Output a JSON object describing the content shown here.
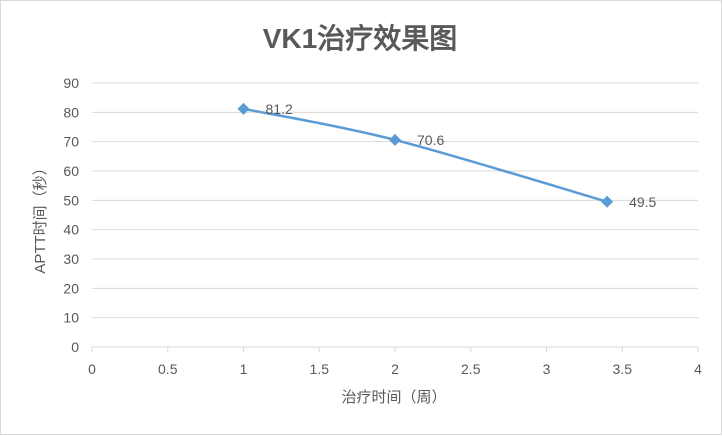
{
  "chart_data": {
    "type": "scatter",
    "title": "VK1治疗效果图",
    "xlabel": "治疗时间（周）",
    "ylabel": "APTT时间（秒）",
    "xlim": [
      0,
      4
    ],
    "ylim": [
      0,
      90
    ],
    "x_ticks": [
      "0",
      "0.5",
      "1",
      "1.5",
      "2",
      "2.5",
      "3",
      "3.5",
      "4"
    ],
    "y_ticks": [
      "0",
      "10",
      "20",
      "30",
      "40",
      "50",
      "60",
      "70",
      "80",
      "90"
    ],
    "grid": true,
    "legend": "none",
    "line_style": "smooth",
    "marker": "diamond",
    "color": "#5b9bd5",
    "points": [
      {
        "x": 1,
        "y": 81.2,
        "label": "81.2"
      },
      {
        "x": 2,
        "y": 70.6,
        "label": "70.6"
      },
      {
        "x": 3.4,
        "y": 49.5,
        "label": "49.5"
      }
    ]
  }
}
